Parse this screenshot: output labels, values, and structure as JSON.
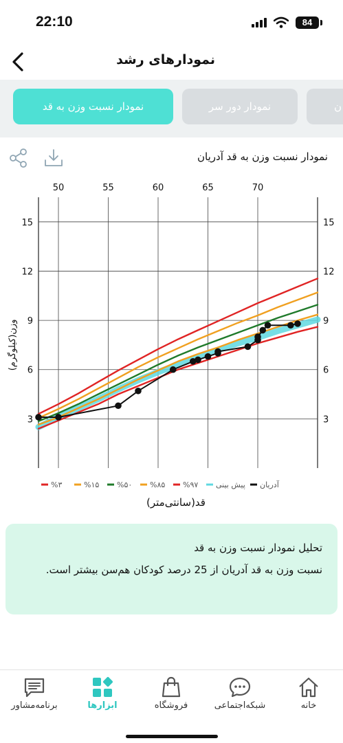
{
  "status_bar": {
    "time": "22:10",
    "battery": "84"
  },
  "header": {
    "title": "نمودارهای رشد"
  },
  "tabs": [
    {
      "label": "نمودار نسبت وزن به قد",
      "active": true
    },
    {
      "label": "نمودار دور سر",
      "active": false
    },
    {
      "label": "ن",
      "active": false
    }
  ],
  "chart_header": {
    "title": "نمودار نسبت وزن به قد آدریان"
  },
  "icons": {
    "share": "share-icon",
    "download": "download-icon",
    "back": "chevron-left-icon"
  },
  "chart_data": {
    "type": "line",
    "x_ticks": [
      "50",
      "55",
      "60",
      "65",
      "70"
    ],
    "y_ticks": [
      "3",
      "6",
      "9",
      "12",
      "15"
    ],
    "xlabel": "قد(سانتی‌متر)",
    "ylabel": "وزن(کیلوگرم)",
    "xlim": [
      48,
      76
    ],
    "ylim": [
      0,
      16.5
    ],
    "x": [
      48,
      50,
      52,
      54,
      56,
      58,
      60,
      62,
      64,
      66,
      68,
      70,
      72,
      74,
      76
    ],
    "series": [
      {
        "name": "%۳",
        "color": "#e02424",
        "values": [
          2.4,
          2.9,
          3.4,
          3.9,
          4.5,
          5.0,
          5.5,
          6.0,
          6.4,
          6.8,
          7.2,
          7.6,
          7.95,
          8.3,
          8.6
        ]
      },
      {
        "name": "%۱۵",
        "color": "#f0a020",
        "values": [
          2.65,
          3.1,
          3.65,
          4.2,
          4.8,
          5.4,
          5.95,
          6.5,
          6.95,
          7.35,
          7.8,
          8.2,
          8.6,
          9.0,
          9.35
        ]
      },
      {
        "name": "%۵۰",
        "color": "#1f7a2a",
        "values": [
          2.85,
          3.35,
          3.9,
          4.5,
          5.1,
          5.7,
          6.3,
          6.85,
          7.35,
          7.8,
          8.25,
          8.7,
          9.15,
          9.55,
          9.95
        ]
      },
      {
        "name": "%۸۵",
        "color": "#f0a020",
        "values": [
          3.05,
          3.6,
          4.2,
          4.85,
          5.5,
          6.15,
          6.75,
          7.3,
          7.85,
          8.35,
          8.85,
          9.3,
          9.8,
          10.25,
          10.7
        ]
      },
      {
        "name": "%۹۷",
        "color": "#e02424",
        "values": [
          3.3,
          3.9,
          4.55,
          5.25,
          5.95,
          6.6,
          7.25,
          7.85,
          8.4,
          8.95,
          9.5,
          10.05,
          10.55,
          11.05,
          11.55
        ]
      },
      {
        "name": "پیش بینی",
        "color": "#5fd8e0",
        "values": [
          2.5,
          3.1,
          3.65,
          4.2,
          4.8,
          5.35,
          5.85,
          6.3,
          6.75,
          7.2,
          7.6,
          7.95,
          8.35,
          8.7,
          9.05
        ]
      },
      {
        "name": "آدریان",
        "color": "#111111",
        "points": [
          {
            "x": 48,
            "y": 3.1
          },
          {
            "x": 50,
            "y": 3.1
          },
          {
            "x": 56,
            "y": 3.8
          },
          {
            "x": 58,
            "y": 4.7
          },
          {
            "x": 61.5,
            "y": 6.0
          },
          {
            "x": 63.5,
            "y": 6.5
          },
          {
            "x": 64,
            "y": 6.6
          },
          {
            "x": 65,
            "y": 6.8
          },
          {
            "x": 66,
            "y": 7.0
          },
          {
            "x": 66,
            "y": 7.1
          },
          {
            "x": 69,
            "y": 7.4
          },
          {
            "x": 70,
            "y": 7.8
          },
          {
            "x": 70,
            "y": 8.0
          },
          {
            "x": 70.5,
            "y": 8.4
          },
          {
            "x": 71,
            "y": 8.7
          },
          {
            "x": 73.3,
            "y": 8.7
          },
          {
            "x": 74,
            "y": 8.8
          }
        ]
      }
    ],
    "legend_position": "bottom",
    "grid": true
  },
  "analysis": {
    "title": "تحلیل نمودار نسبت وزن به قد",
    "body": "نسبت وزن به قد آدریان از 25 درصد کودکان هم‌سن بیشتر است."
  },
  "bottom_nav": [
    {
      "label": "خانه",
      "icon": "home-icon",
      "active": false
    },
    {
      "label": "شبکه‌اجتماعی",
      "icon": "chat-bubble-icon",
      "active": false
    },
    {
      "label": "فروشگاه",
      "icon": "shopping-bag-icon",
      "active": false
    },
    {
      "label": "ابزارها",
      "icon": "tools-grid-icon",
      "active": true
    },
    {
      "label": "برنامه‌مشاور",
      "icon": "message-icon",
      "active": false
    }
  ]
}
